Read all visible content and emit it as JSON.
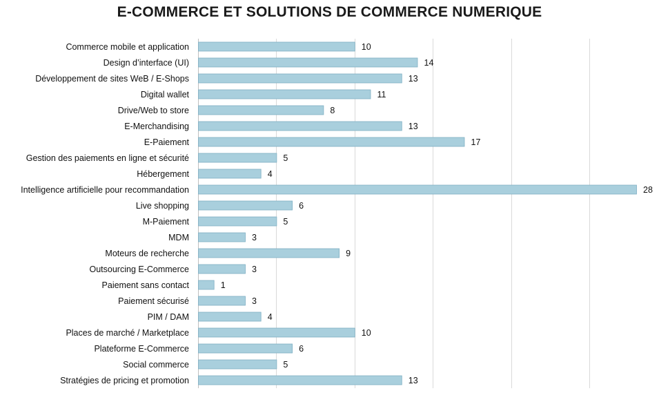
{
  "chart_data": {
    "type": "bar",
    "orientation": "horizontal",
    "title": "E-COMMERCE ET SOLUTIONS DE COMMERCE NUMERIQUE",
    "xlim": [
      0,
      28
    ],
    "grid": true,
    "bar_color": "#a9cfdd",
    "bar_edge_color": "#7fb0c4",
    "gridline_color": "#d9d9d9",
    "categories": [
      "Commerce mobile et application",
      "Design d’interface (UI)",
      "Développement de sites WeB / E-Shops",
      "Digital wallet",
      "Drive/Web to store",
      "E-Merchandising",
      "E-Paiement",
      "Gestion des paiements en ligne et sécurité",
      "Hébergement",
      "Intelligence artificielle pour recommandation",
      "Live shopping",
      "M-Paiement",
      "MDM",
      "Moteurs de recherche",
      "Outsourcing E-Commerce",
      "Paiement sans contact",
      "Paiement sécurisé",
      "PIM / DAM",
      "Places de marché / Marketplace",
      "Plateforme E-Commerce",
      "Social commerce",
      "Stratégies de pricing et promotion"
    ],
    "values": [
      10,
      14,
      13,
      11,
      8,
      13,
      17,
      5,
      4,
      28,
      6,
      5,
      3,
      9,
      3,
      1,
      3,
      4,
      10,
      6,
      5,
      13
    ]
  }
}
